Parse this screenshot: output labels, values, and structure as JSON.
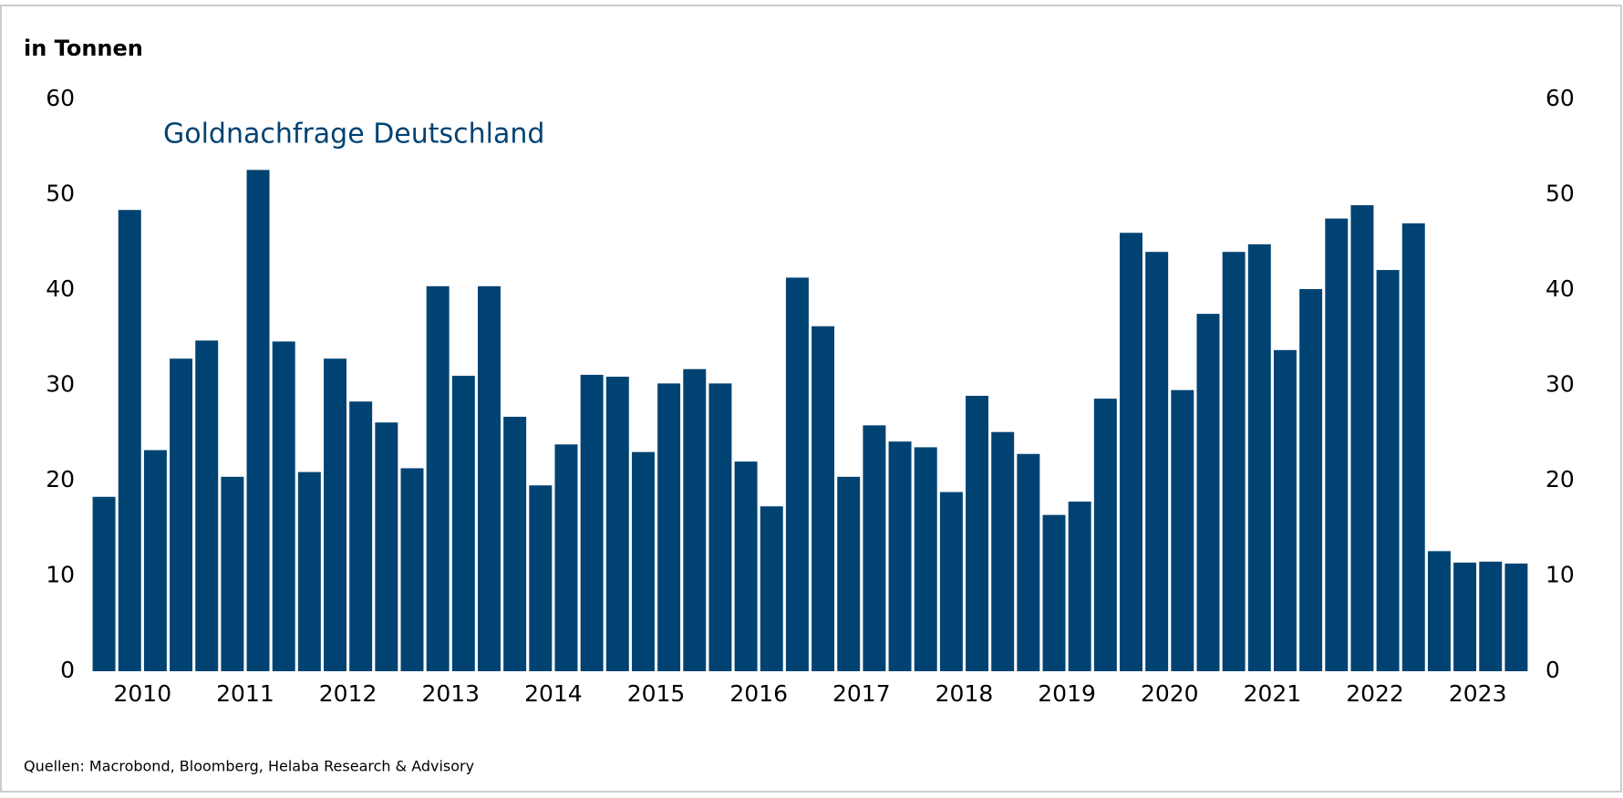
{
  "chart_data": {
    "type": "bar",
    "title": "in Tonnen",
    "series_label": "Goldnachfrage Deutschland",
    "source": "Quellen: Macrobond,  Bloomberg, Helaba Research & Advisory",
    "years": [
      "2010",
      "2011",
      "2012",
      "2013",
      "2014",
      "2015",
      "2016",
      "2017",
      "2018",
      "2019",
      "2020",
      "2021",
      "2022",
      "2023"
    ],
    "values": [
      18.3,
      48.4,
      23.2,
      32.8,
      34.7,
      20.4,
      52.6,
      34.6,
      20.9,
      32.8,
      28.3,
      26.1,
      21.3,
      40.4,
      31.0,
      40.4,
      26.7,
      19.5,
      23.8,
      31.1,
      30.9,
      23.0,
      30.2,
      31.7,
      30.2,
      22.0,
      17.3,
      41.3,
      36.2,
      20.4,
      25.8,
      24.1,
      23.5,
      18.8,
      28.9,
      25.1,
      22.8,
      16.4,
      17.8,
      28.6,
      46.0,
      44.0,
      29.5,
      37.5,
      44.0,
      44.8,
      33.7,
      40.1,
      47.5,
      48.9,
      42.1,
      47.0,
      12.6,
      11.4,
      11.5,
      11.3
    ],
    "color": "#004373",
    "ylim": [
      0,
      60
    ],
    "yticks": [
      0,
      10,
      20,
      30,
      40,
      50,
      60
    ],
    "y2lim": [
      0,
      60
    ],
    "y2ticks": [
      0,
      10,
      20,
      30,
      40,
      50,
      60
    ],
    "grid": false
  }
}
